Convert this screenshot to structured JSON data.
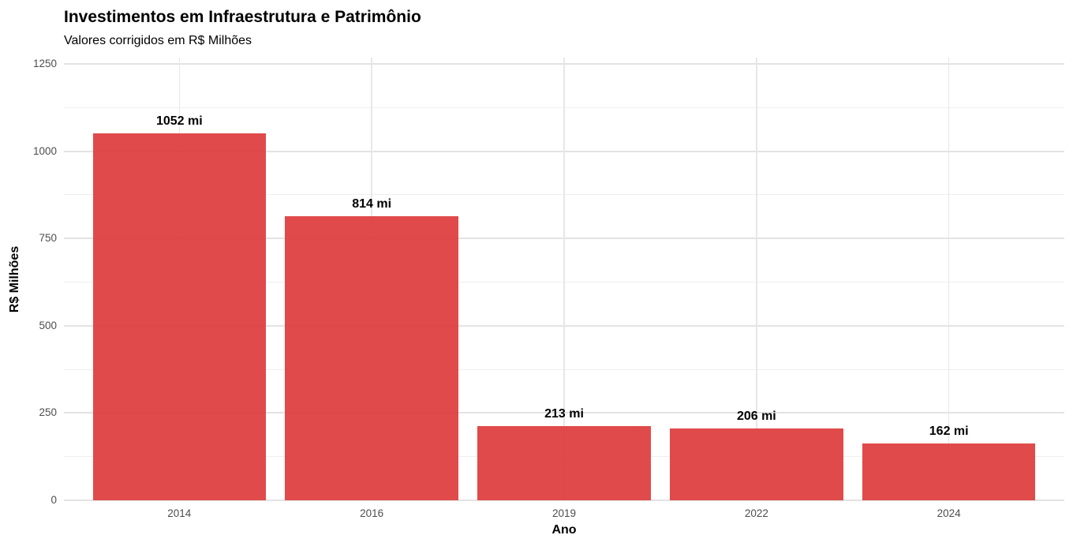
{
  "page": {
    "background_color": "#ffffff"
  },
  "chart_data": {
    "type": "bar",
    "title": "Investimentos em Infraestrutura e Patrimônio",
    "subtitle": "Valores corrigidos em R$ Milhões",
    "xlabel": "Ano",
    "ylabel": "R$ Milhões",
    "categories": [
      "2014",
      "2016",
      "2019",
      "2022",
      "2024"
    ],
    "values": [
      1052,
      814,
      213,
      206,
      162
    ],
    "bar_labels": [
      "1052 mi",
      "814 mi",
      "213 mi",
      "206 mi",
      "162 mi"
    ],
    "ylim": [
      0,
      1268
    ],
    "y_major_ticks": [
      0,
      250,
      500,
      750,
      1000,
      1250
    ],
    "y_tick_labels": [
      "0",
      "250",
      "500",
      "750",
      "1000",
      "1250"
    ],
    "y_minor_ticks": [
      125,
      375,
      625,
      875,
      1125
    ],
    "grid": "major-and-minor-horizontal, major-vertical-at-categories",
    "legend_position": "none",
    "bar_width_ratio": 0.9,
    "colors": {
      "bar_fill": "rgba(223,60,60,0.93)",
      "bar_hex": "#E14949",
      "grid_major": "#e3e3e3",
      "grid_minor": "#efefef",
      "grid_vertical": "#e7e7e7",
      "tick_label": "#4d4d4d",
      "text": "#000000",
      "background": "#ffffff"
    }
  }
}
